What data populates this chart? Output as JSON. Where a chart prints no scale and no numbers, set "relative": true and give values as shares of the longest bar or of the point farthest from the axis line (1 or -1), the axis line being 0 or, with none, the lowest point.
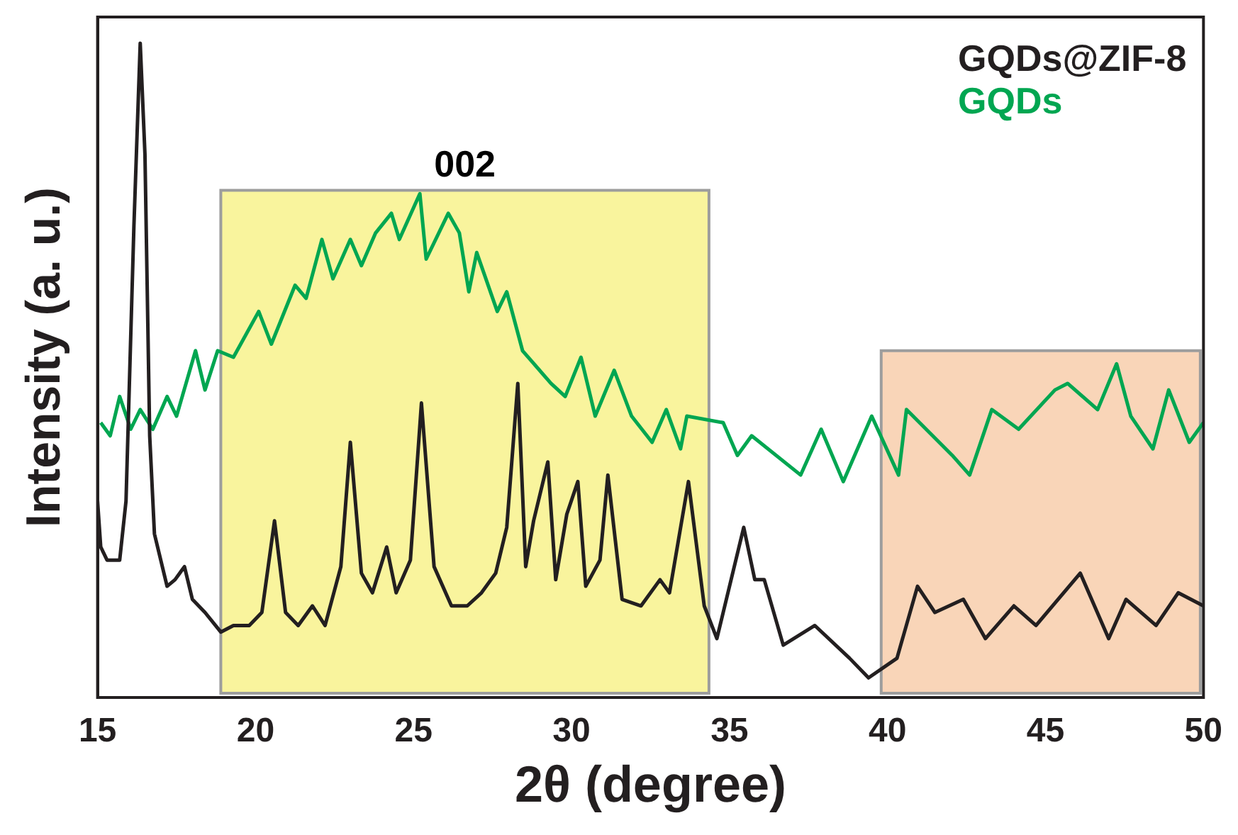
{
  "chart_data": {
    "type": "line",
    "relative": true,
    "xlabel": "2θ (degree)",
    "ylabel": "Intensity (a. u.)",
    "xlim": [
      15,
      50
    ],
    "xticks": [
      15,
      20,
      25,
      30,
      35,
      40,
      45,
      50
    ],
    "legend": "top right",
    "grid": false,
    "marker": "none",
    "line_style": "solid",
    "annotations": [
      "002"
    ],
    "bands": [
      {
        "axis": "x",
        "from": 18.9,
        "to": 34.35,
        "color": "#f9f49d"
      },
      {
        "axis": "x",
        "from": 39.8,
        "to": 49.9,
        "color": "#f9d5b8"
      }
    ],
    "series": [
      {
        "name": "GQDs@ZIF-8",
        "color": "#231f20",
        "x": [
          15,
          15.1,
          15.3,
          15.7,
          15.9,
          16.15,
          16.35,
          16.5,
          16.65,
          16.8,
          17.2,
          17.45,
          17.75,
          18.0,
          18.4,
          18.9,
          19.3,
          19.8,
          20.2,
          20.6,
          20.95,
          21.35,
          21.8,
          22.2,
          22.7,
          23.0,
          23.35,
          23.7,
          24.15,
          24.45,
          24.9,
          25.25,
          25.65,
          26.2,
          26.7,
          27.15,
          27.6,
          27.95,
          28.3,
          28.55,
          28.8,
          29.25,
          29.5,
          29.85,
          30.2,
          30.45,
          30.9,
          31.15,
          31.6,
          32.2,
          32.8,
          33.1,
          33.7,
          34.2,
          34.6,
          35.45,
          35.8,
          36.1,
          36.7,
          37.7,
          38.8,
          39.4,
          40.3,
          40.95,
          41.5,
          42.4,
          43.1,
          44.0,
          44.7,
          46.1,
          47.0,
          47.55,
          48.5,
          49.2,
          50
        ],
        "values": [
          0.3,
          0.23,
          0.21,
          0.21,
          0.3,
          0.72,
          1,
          0.83,
          0.4,
          0.25,
          0.17,
          0.18,
          0.2,
          0.15,
          0.13,
          0.1,
          0.11,
          0.11,
          0.13,
          0.27,
          0.13,
          0.11,
          0.14,
          0.11,
          0.2,
          0.39,
          0.19,
          0.16,
          0.23,
          0.16,
          0.21,
          0.45,
          0.2,
          0.14,
          0.14,
          0.16,
          0.19,
          0.26,
          0.48,
          0.2,
          0.27,
          0.36,
          0.18,
          0.28,
          0.33,
          0.17,
          0.21,
          0.34,
          0.15,
          0.14,
          0.18,
          0.16,
          0.33,
          0.14,
          0.09,
          0.26,
          0.18,
          0.18,
          0.08,
          0.11,
          0.06,
          0.03,
          0.06,
          0.17,
          0.13,
          0.15,
          0.09,
          0.14,
          0.11,
          0.19,
          0.09,
          0.15,
          0.11,
          0.16,
          0.14
        ]
      },
      {
        "name": "GQDs",
        "color": "#00a651",
        "x": [
          15.1,
          15.4,
          15.7,
          16.05,
          16.35,
          16.75,
          17.2,
          17.5,
          18.1,
          18.4,
          18.8,
          19.3,
          20.1,
          20.5,
          21.25,
          21.6,
          22.1,
          22.45,
          23.0,
          23.35,
          23.8,
          24.3,
          24.55,
          25.2,
          25.4,
          26.1,
          26.45,
          26.75,
          27.0,
          27.65,
          27.95,
          28.45,
          29.35,
          29.8,
          30.3,
          30.75,
          31.35,
          31.9,
          32.55,
          33.0,
          33.45,
          33.65,
          34.8,
          35.25,
          35.7,
          37.25,
          37.9,
          38.6,
          39.5,
          40.35,
          40.6,
          42.05,
          42.6,
          43.3,
          44.15,
          45.3,
          45.7,
          46.65,
          47.25,
          47.7,
          48.4,
          48.9,
          49.55,
          50
        ],
        "values": [
          0.42,
          0.4,
          0.46,
          0.41,
          0.44,
          0.41,
          0.46,
          0.43,
          0.53,
          0.47,
          0.53,
          0.52,
          0.59,
          0.54,
          0.63,
          0.61,
          0.7,
          0.64,
          0.7,
          0.66,
          0.71,
          0.74,
          0.7,
          0.77,
          0.67,
          0.74,
          0.71,
          0.62,
          0.68,
          0.59,
          0.62,
          0.53,
          0.48,
          0.46,
          0.52,
          0.43,
          0.5,
          0.43,
          0.39,
          0.44,
          0.38,
          0.43,
          0.42,
          0.37,
          0.4,
          0.34,
          0.41,
          0.33,
          0.43,
          0.34,
          0.44,
          0.37,
          0.34,
          0.44,
          0.41,
          0.47,
          0.48,
          0.44,
          0.51,
          0.43,
          0.38,
          0.47,
          0.39,
          0.42
        ]
      }
    ]
  }
}
